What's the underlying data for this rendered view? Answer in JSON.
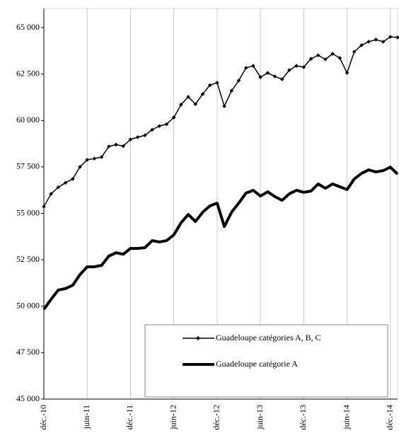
{
  "chart_data": {
    "type": "line",
    "categories": [
      "déc.-10",
      null,
      null,
      null,
      null,
      null,
      "juin-11",
      null,
      null,
      null,
      null,
      null,
      "déc.-11",
      null,
      null,
      null,
      null,
      null,
      "juin-12",
      null,
      null,
      null,
      null,
      null,
      "déc.-12",
      null,
      null,
      null,
      null,
      null,
      "juin-13",
      null,
      null,
      null,
      null,
      null,
      "déc.-13",
      null,
      null,
      null,
      null,
      null,
      "juin-14",
      null,
      null,
      null,
      null,
      null,
      "déc.-14",
      null
    ],
    "series": [
      {
        "name": "Guadeloupe catégories A, B, C",
        "color": "#000000",
        "line_width": 1.5,
        "marker": "diamond",
        "values": [
          55360,
          56050,
          56400,
          56650,
          56850,
          57500,
          57880,
          57950,
          58030,
          58600,
          58700,
          58620,
          58980,
          59100,
          59200,
          59500,
          59700,
          59800,
          60160,
          60850,
          61270,
          60880,
          61420,
          61900,
          62030,
          60770,
          61600,
          62150,
          62830,
          62940,
          62330,
          62560,
          62370,
          62220,
          62710,
          62940,
          62870,
          63320,
          63510,
          63290,
          63590,
          63360,
          62560,
          63700,
          64050,
          64240,
          64350,
          64240,
          64500,
          64470
        ]
      },
      {
        "name": "Guadeloupe catégorie A",
        "color": "#000000",
        "line_width": 4,
        "marker": "none",
        "values": [
          49830,
          50370,
          50870,
          50950,
          51130,
          51700,
          52120,
          52120,
          52200,
          52700,
          52880,
          52800,
          53110,
          53110,
          53150,
          53530,
          53460,
          53530,
          53840,
          54490,
          54940,
          54560,
          55060,
          55400,
          55550,
          54290,
          55060,
          55550,
          56090,
          56240,
          55930,
          56160,
          55900,
          55700,
          56050,
          56240,
          56130,
          56200,
          56580,
          56350,
          56580,
          56430,
          56280,
          56850,
          57150,
          57340,
          57230,
          57300,
          57490,
          57110
        ]
      }
    ],
    "ylim": [
      45000,
      65000
    ],
    "yticks": [
      {
        "value": 45000,
        "label": "45 000"
      },
      {
        "value": 47500,
        "label": "47 500"
      },
      {
        "value": 50000,
        "label": "50 000"
      },
      {
        "value": 52500,
        "label": "52 500"
      },
      {
        "value": 55000,
        "label": "55 000"
      },
      {
        "value": 57500,
        "label": "57 500"
      },
      {
        "value": 60000,
        "label": "60 000"
      },
      {
        "value": 62500,
        "label": "62 500"
      },
      {
        "value": 65000,
        "label": "65 000"
      }
    ],
    "grid": "x",
    "legend": "bottom-right"
  }
}
